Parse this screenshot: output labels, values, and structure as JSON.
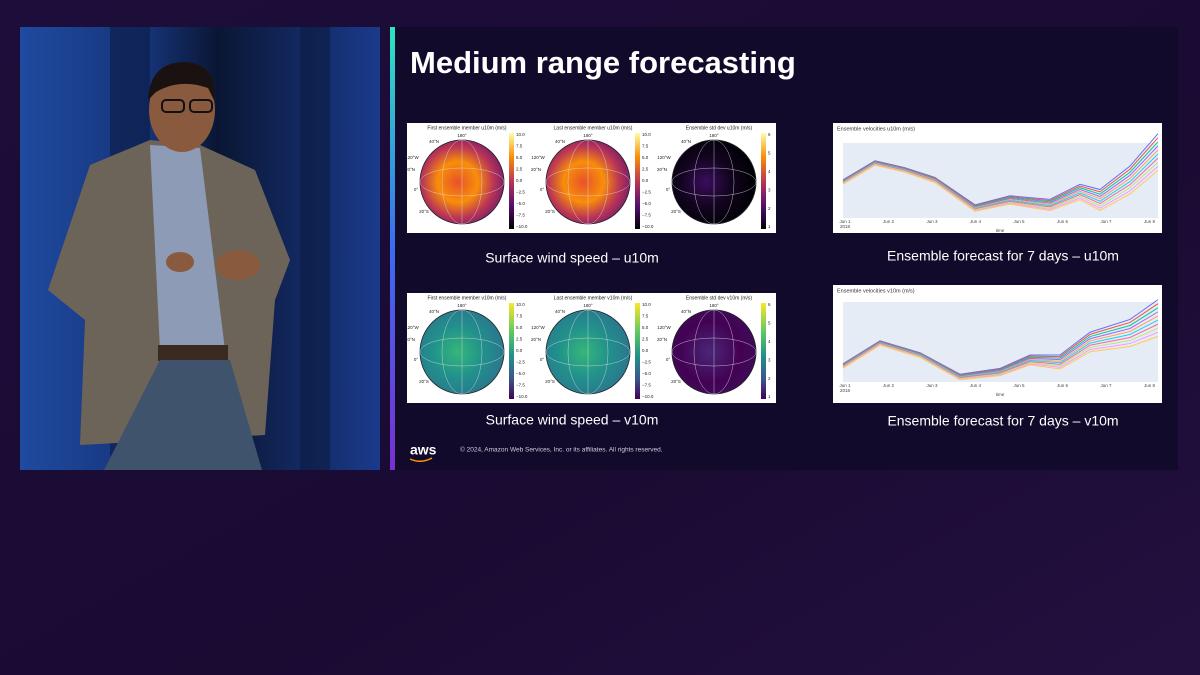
{
  "slide": {
    "title": "Medium range forecasting",
    "maps": [
      {
        "caption": "Surface wind speed – u10m",
        "panels": [
          "First ensemble member u10m (m/s)",
          "Last ensemble member u10m (m/s)",
          "Ensemble std dev u10m (m/s)"
        ]
      },
      {
        "caption": "Surface wind speed – v10m",
        "panels": [
          "First ensemble member v10m (m/s)",
          "Last ensemble member v10m (m/s)",
          "Ensemble std dev v10m (m/s)"
        ]
      }
    ],
    "colorbar_ticks": [
      "10.0",
      "7.5",
      "5.0",
      "2.5",
      "0.0",
      "−2.5",
      "−5.0",
      "−7.5",
      "−10.0"
    ],
    "std_ticks": [
      "6",
      "5",
      "4",
      "3",
      "2",
      "1"
    ],
    "globe_labels": [
      "180°",
      "40°N",
      "120°W",
      "20°N",
      "0°",
      "20°S"
    ],
    "forecasts": [
      {
        "caption": "Ensemble forecast for 7 days – u10m",
        "chart_title": "Ensemble velocities u10m (m/s)"
      },
      {
        "caption": "Ensemble forecast for 7 days – v10m",
        "chart_title": "Ensemble velocities v10m (m/s)"
      }
    ],
    "days": [
      "Jun 1",
      "Jun 2",
      "Jun 3",
      "Jun 4",
      "Jun 5",
      "Jun 6",
      "Jun 7",
      "Jun 8"
    ],
    "year": "2018",
    "time_label": "time",
    "logo": "aws",
    "copyright": "© 2024, Amazon Web Services, Inc. or its affiliates. All rights reserved."
  }
}
